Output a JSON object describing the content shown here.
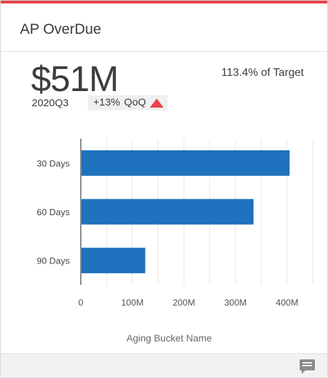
{
  "card": {
    "title": "AP OverDue",
    "accent_color": "#e8414a"
  },
  "kpi": {
    "value": "$51M",
    "period": "2020Q3",
    "change": "+13%",
    "change_label": "QoQ",
    "trend_icon": "triangle-up-icon",
    "target": "113.4% of Target"
  },
  "chart_data": {
    "type": "bar",
    "orientation": "horizontal",
    "categories": [
      "30 Days",
      "60 Days",
      "90 Days"
    ],
    "values": [
      405,
      335,
      125
    ],
    "value_unit": "M",
    "xlim": [
      0,
      450
    ],
    "xticks": [
      0,
      100,
      200,
      300,
      400
    ],
    "xtick_labels": [
      "0",
      "100M",
      "200M",
      "300M",
      "400M"
    ],
    "xlabel": "Aging Bucket Name",
    "bar_color": "#1f72bd",
    "grid": true
  },
  "footer": {
    "icon": "comment-icon"
  }
}
